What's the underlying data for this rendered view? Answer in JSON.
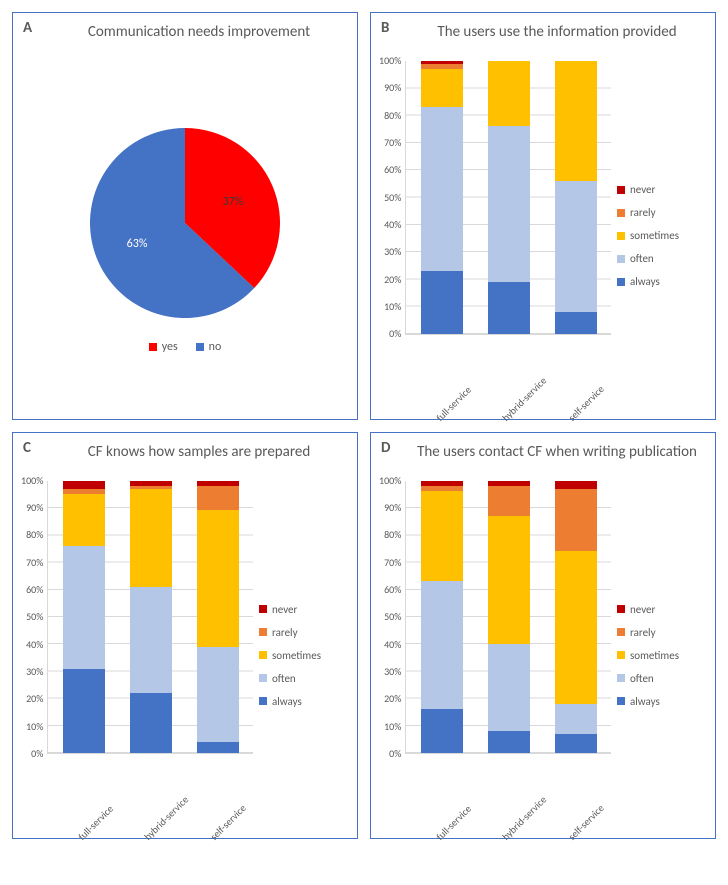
{
  "colors": {
    "border": "#4472c4",
    "text": "#595959",
    "grid": "#d9d9d9",
    "white": "#ffffff"
  },
  "frequency_legend": {
    "order": [
      "never",
      "rarely",
      "sometimes",
      "often",
      "always"
    ],
    "labels": {
      "never": "never",
      "rarely": "rarely",
      "sometimes": "sometimes",
      "often": "often",
      "always": "always"
    },
    "colors": {
      "never": "#c00000",
      "rarely": "#ed7d31",
      "sometimes": "#ffc000",
      "often": "#b4c7e7",
      "always": "#4472c4"
    }
  },
  "y_axis": {
    "min": 0,
    "max": 100,
    "step": 10,
    "suffix": "%"
  },
  "panels": {
    "A": {
      "label": "A",
      "title": "Communication needs improvement",
      "type": "pie",
      "slices": [
        {
          "key": "yes",
          "label": "yes",
          "value": 37,
          "color": "#ff0000",
          "text": "37%",
          "text_color": "#3a3a3a"
        },
        {
          "key": "no",
          "label": "no",
          "value": 63,
          "color": "#4472c4",
          "text": "63%",
          "text_color": "#ffffff"
        }
      ],
      "start_angle_deg": -90,
      "label_offset": 0.55
    },
    "B": {
      "label": "B",
      "title": "The users use the information provided",
      "type": "stacked_bar",
      "categories": [
        "full-service",
        "hybrid-service",
        "self-service"
      ],
      "series": {
        "always": [
          23,
          19,
          8
        ],
        "often": [
          60,
          57,
          48
        ],
        "sometimes": [
          14,
          24,
          44
        ],
        "rarely": [
          2,
          0,
          0
        ],
        "never": [
          1,
          0,
          0
        ]
      }
    },
    "C": {
      "label": "C",
      "title": "CF knows how samples are prepared",
      "type": "stacked_bar",
      "categories": [
        "full-service",
        "hybrid-service",
        "self-service"
      ],
      "series": {
        "always": [
          31,
          22,
          4
        ],
        "often": [
          45,
          39,
          35
        ],
        "sometimes": [
          19,
          36,
          50
        ],
        "rarely": [
          2,
          1,
          9
        ],
        "never": [
          3,
          2,
          2
        ]
      }
    },
    "D": {
      "label": "D",
      "title": "The users contact CF when writing publication",
      "type": "stacked_bar",
      "categories": [
        "full-service",
        "hybrid-service",
        "self-service"
      ],
      "series": {
        "always": [
          16,
          8,
          7
        ],
        "often": [
          47,
          32,
          11
        ],
        "sometimes": [
          33,
          47,
          56
        ],
        "rarely": [
          2,
          11,
          23
        ],
        "never": [
          2,
          2,
          3
        ]
      }
    }
  }
}
